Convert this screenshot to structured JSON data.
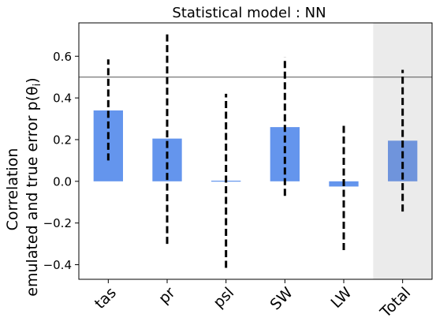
{
  "chart_data": {
    "type": "bar",
    "title": "Statistical model : NN",
    "ylabel_line1": "Correlation",
    "ylabel_line2": "emulated and true error p(θ",
    "ylabel_sub": "i",
    "ylabel_end": ")",
    "categories": [
      "tas",
      "pr",
      "psl",
      "SW",
      "LW",
      "Total"
    ],
    "values": [
      0.34,
      0.205,
      0.003,
      0.26,
      -0.025,
      0.195
    ],
    "error_low": [
      0.1,
      -0.3,
      -0.415,
      -0.07,
      -0.33,
      -0.145
    ],
    "error_high": [
      0.585,
      0.71,
      0.42,
      0.595,
      0.275,
      0.535
    ],
    "reference_line": 0.5,
    "ylim": [
      -0.47,
      0.76
    ],
    "yticks": [
      -0.4,
      -0.2,
      0.0,
      0.2,
      0.4,
      0.6
    ],
    "ytick_labels": [
      "−0.4",
      "−0.2",
      "0.0",
      "0.2",
      "0.4",
      "0.6"
    ],
    "highlight_category": "Total",
    "colors": {
      "bar": "#6495ed",
      "bar_total": "#6f94dc",
      "highlight_bg": "#ebebeb",
      "error": "#000000",
      "reference": "#555555"
    }
  }
}
